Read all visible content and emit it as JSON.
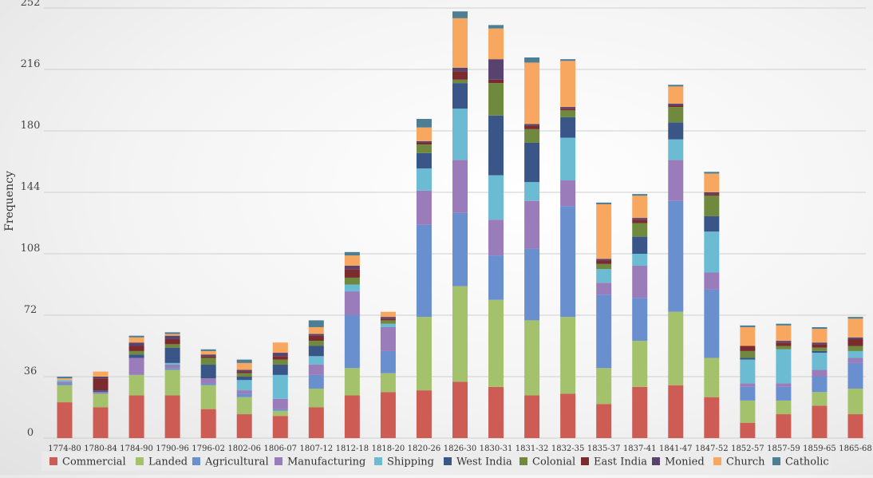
{
  "chart_data": {
    "type": "bar",
    "stacked": true,
    "ylabel": "Frequency",
    "xlabel": "",
    "ylim": [
      0,
      252
    ],
    "yticks": [
      0,
      36,
      72,
      108,
      144,
      180,
      216,
      252
    ],
    "grid": true,
    "legend_position": "bottom",
    "categories": [
      "1774-80",
      "1780-84",
      "1784-90",
      "1790-96",
      "1796-02",
      "1802-06",
      "1806-07",
      "1807-12",
      "1812-18",
      "1818-20",
      "1820-26",
      "1826-30",
      "1830-31",
      "1831-32",
      "1832-35",
      "1835-37",
      "1837-41",
      "1841-47",
      "1847-52",
      "1852-57",
      "1857-59",
      "1859-65",
      "1865-68"
    ],
    "series": [
      {
        "name": "Commercial",
        "color": "#cd5c55",
        "values": [
          21,
          18,
          25,
          25,
          17,
          14,
          13,
          18,
          25,
          27,
          28,
          33,
          30,
          25,
          26,
          20,
          30,
          31,
          24,
          9,
          14,
          19,
          14
        ]
      },
      {
        "name": "Landed",
        "color": "#a4c26b",
        "values": [
          10,
          8,
          12,
          15,
          14,
          10,
          3,
          11,
          16,
          11,
          43,
          56,
          51,
          44,
          45,
          21,
          27,
          43,
          23,
          13,
          8,
          8,
          15
        ]
      },
      {
        "name": "Agricultural",
        "color": "#6a8fcf",
        "values": [
          1,
          0,
          0,
          1,
          1,
          2,
          1,
          8,
          31,
          13,
          54,
          43,
          26,
          42,
          65,
          43,
          25,
          65,
          40,
          8,
          8,
          9,
          15
        ]
      },
      {
        "name": "Manufacturing",
        "color": "#9b7cba",
        "values": [
          1,
          1,
          10,
          2,
          3,
          2,
          6,
          6,
          14,
          14,
          20,
          31,
          21,
          28,
          15,
          7,
          19,
          24,
          10,
          2,
          2,
          4,
          3
        ]
      },
      {
        "name": "Shipping",
        "color": "#6bbcd2",
        "values": [
          1,
          0,
          0,
          1,
          0,
          6,
          14,
          5,
          4,
          2,
          13,
          30,
          26,
          11,
          25,
          8,
          7,
          12,
          24,
          14,
          20,
          10,
          4
        ]
      },
      {
        "name": "West India",
        "color": "#3a5688",
        "values": [
          0,
          1,
          2,
          9,
          8,
          2,
          6,
          6,
          0,
          0,
          9,
          15,
          35,
          23,
          12,
          0,
          10,
          10,
          9,
          1,
          0,
          1,
          0
        ]
      },
      {
        "name": "Colonial",
        "color": "#6f8a3e",
        "values": [
          0,
          0,
          2,
          2,
          4,
          2,
          3,
          3,
          4,
          2,
          5,
          2,
          19,
          8,
          4,
          3,
          8,
          9,
          12,
          4,
          2,
          2,
          3
        ]
      },
      {
        "name": "East India",
        "color": "#7b2b2e",
        "values": [
          0,
          7,
          3,
          3,
          1,
          1,
          2,
          3,
          5,
          1,
          1,
          5,
          2,
          2,
          1,
          2,
          2,
          1,
          1,
          3,
          2,
          2,
          4
        ]
      },
      {
        "name": "Monied",
        "color": "#58436e",
        "values": [
          0,
          1,
          2,
          2,
          1,
          1,
          2,
          1,
          2,
          1,
          1,
          2,
          12,
          1,
          1,
          1,
          1,
          1,
          1,
          0,
          1,
          1,
          1
        ]
      },
      {
        "name": "Church",
        "color": "#f8a760",
        "values": [
          1,
          3,
          3,
          1,
          2,
          4,
          6,
          4,
          6,
          3,
          8,
          29,
          18,
          36,
          27,
          32,
          13,
          10,
          11,
          11,
          9,
          8,
          11
        ]
      },
      {
        "name": "Catholic",
        "color": "#4d7e93",
        "values": [
          1,
          0,
          1,
          1,
          1,
          2,
          0,
          4,
          2,
          0,
          5,
          4,
          2,
          3,
          1,
          1,
          1,
          1,
          1,
          1,
          1,
          1,
          1
        ]
      }
    ]
  }
}
